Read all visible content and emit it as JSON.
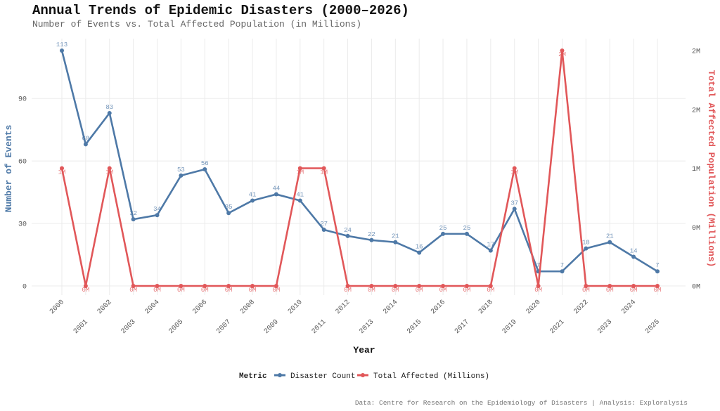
{
  "chart_data": {
    "type": "line",
    "title": "Annual Trends of Epidemic Disasters (2000–2026)",
    "subtitle": "Number of Events vs. Total Affected Population (in Millions)",
    "xlabel": "Year",
    "ylabel": "Number of Events",
    "y2label": "Total Affected Population (Millions)",
    "x": [
      2000,
      2001,
      2002,
      2003,
      2004,
      2005,
      2006,
      2007,
      2008,
      2009,
      2010,
      2011,
      2012,
      2013,
      2014,
      2015,
      2016,
      2017,
      2018,
      2019,
      2020,
      2021,
      2022,
      2023,
      2024,
      2025
    ],
    "ylim": [
      0,
      113
    ],
    "yticks": [
      0,
      30,
      60,
      90
    ],
    "y2ticks": [
      0,
      0.5,
      1,
      1.5,
      2
    ],
    "y2ticklabels": [
      "0M",
      "0M",
      "1M",
      "2M",
      "2M"
    ],
    "grid": true,
    "legend_position": "bottom",
    "legend_title": "Metric",
    "series": [
      {
        "name": "Disaster Count",
        "axis": "left",
        "color": "#4e79a7",
        "values": [
          113,
          68,
          83,
          32,
          34,
          53,
          56,
          35,
          41,
          44,
          41,
          27,
          24,
          22,
          21,
          16,
          25,
          25,
          17,
          37,
          7,
          7,
          18,
          21,
          14,
          7
        ],
        "labels": [
          "113",
          "68",
          "83",
          "32",
          "34",
          "53",
          "56",
          "35",
          "41",
          "44",
          "41",
          "27",
          "24",
          "22",
          "21",
          "16",
          "25",
          "25",
          "17",
          "37",
          "7",
          "7",
          "18",
          "21",
          "14",
          "7"
        ]
      },
      {
        "name": "Total Affected (Millions)",
        "axis": "right",
        "color": "#e15759",
        "values": [
          1,
          0,
          1,
          0,
          0,
          0,
          0,
          0,
          0,
          0,
          1,
          1,
          0,
          0,
          0,
          0,
          0,
          0,
          0,
          1,
          0,
          2,
          0,
          0,
          0,
          0
        ],
        "labels": [
          "1M",
          "0M",
          "1M",
          "0M",
          "0M",
          "0M",
          "0M",
          "0M",
          "0M",
          "0M",
          "1M",
          "1M",
          "0M",
          "0M",
          "0M",
          "0M",
          "0M",
          "0M",
          "0M",
          "1M",
          "0M",
          "2M",
          "0M",
          "0M",
          "0M",
          "0M"
        ]
      }
    ],
    "caption": "Data: Centre for Research on the Epidemiology of Disasters | Analysis: Exploralysis"
  }
}
